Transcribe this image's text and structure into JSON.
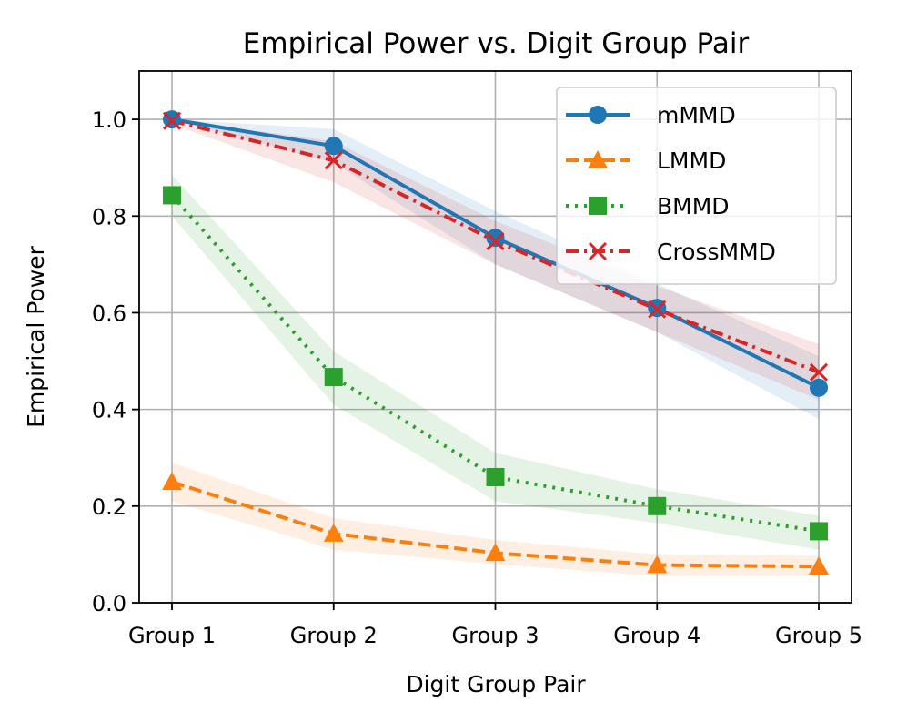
{
  "chart_data": {
    "type": "line",
    "title": "Empirical Power vs. Digit Group Pair",
    "xlabel": "Digit Group Pair",
    "ylabel": "Empirical Power",
    "categories": [
      "Group 1",
      "Group 2",
      "Group 3",
      "Group 4",
      "Group 5"
    ],
    "ylim": [
      0.0,
      1.1
    ],
    "yticks": [
      0.0,
      0.2,
      0.4,
      0.6,
      0.8,
      1.0
    ],
    "ytick_labels": [
      "0.0",
      "0.2",
      "0.4",
      "0.6",
      "0.8",
      "1.0"
    ],
    "grid": true,
    "legend_position": "top-right",
    "series": [
      {
        "name": "mMMD",
        "color": "#1f77b4",
        "marker": "circle",
        "linestyle": "solid",
        "values": [
          1.0,
          0.945,
          0.755,
          0.61,
          0.445
        ],
        "band_lower": [
          1.0,
          0.91,
          0.7,
          0.56,
          0.38
        ],
        "band_upper": [
          1.0,
          0.98,
          0.81,
          0.66,
          0.51
        ]
      },
      {
        "name": "LMMD",
        "color": "#ff7f0e",
        "marker": "triangle",
        "linestyle": "dashed",
        "values": [
          0.25,
          0.143,
          0.103,
          0.078,
          0.075
        ],
        "band_lower": [
          0.21,
          0.11,
          0.08,
          0.055,
          0.055
        ],
        "band_upper": [
          0.29,
          0.175,
          0.13,
          0.1,
          0.097
        ]
      },
      {
        "name": "BMMD",
        "color": "#2ca02c",
        "marker": "square",
        "linestyle": "dotted",
        "values": [
          0.843,
          0.467,
          0.26,
          0.2,
          0.148
        ],
        "band_lower": [
          0.8,
          0.41,
          0.21,
          0.165,
          0.11
        ],
        "band_upper": [
          0.885,
          0.52,
          0.31,
          0.235,
          0.18
        ]
      },
      {
        "name": "CrossMMD",
        "color": "#d62728",
        "marker": "x",
        "linestyle": "dashdot",
        "values": [
          0.997,
          0.915,
          0.748,
          0.607,
          0.477
        ],
        "band_lower": [
          0.99,
          0.87,
          0.7,
          0.56,
          0.42
        ],
        "band_upper": [
          1.0,
          0.955,
          0.79,
          0.655,
          0.535
        ]
      }
    ]
  }
}
